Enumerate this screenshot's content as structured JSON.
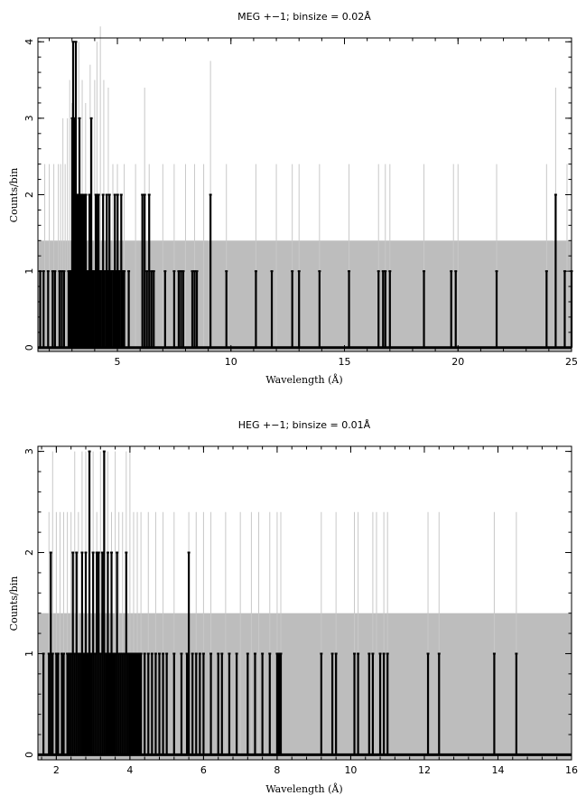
{
  "chart_data": [
    {
      "type": "line",
      "title": "MEG +−1; binsize = 0.02Å",
      "xlabel": "Wavelength (Å)",
      "ylabel": "Counts/bin",
      "xlim": [
        1.5,
        25
      ],
      "ylim": [
        -0.05,
        4.05
      ],
      "xticks": [
        5,
        10,
        15,
        20,
        25
      ],
      "yticks": [
        0,
        1,
        2,
        3,
        4
      ],
      "grid": false,
      "colors": {
        "data": "#000000",
        "model_band": "#bdbdbd",
        "model_lines": "#c8c8c8"
      },
      "model_band_level": 1.4,
      "model_line_peaks": [
        [
          1.8,
          2.4
        ],
        [
          2.0,
          2.4
        ],
        [
          2.2,
          2.4
        ],
        [
          2.4,
          2.4
        ],
        [
          2.5,
          2.4
        ],
        [
          2.6,
          3.0
        ],
        [
          2.7,
          2.4
        ],
        [
          2.8,
          3.0
        ],
        [
          2.9,
          3.5
        ],
        [
          3.0,
          3.2
        ],
        [
          3.05,
          4.0
        ],
        [
          3.15,
          3.7
        ],
        [
          3.3,
          4.0
        ],
        [
          3.45,
          3.5
        ],
        [
          3.6,
          3.2
        ],
        [
          3.8,
          3.7
        ],
        [
          4.0,
          3.5
        ],
        [
          4.1,
          4.0
        ],
        [
          4.25,
          4.2
        ],
        [
          4.4,
          3.5
        ],
        [
          4.6,
          3.4
        ],
        [
          4.8,
          2.4
        ],
        [
          5.0,
          2.4
        ],
        [
          5.3,
          2.4
        ],
        [
          5.8,
          2.4
        ],
        [
          6.2,
          3.4
        ],
        [
          6.4,
          2.4
        ],
        [
          7.0,
          2.4
        ],
        [
          7.5,
          2.4
        ],
        [
          8.0,
          2.4
        ],
        [
          8.4,
          2.4
        ],
        [
          8.8,
          2.4
        ],
        [
          9.1,
          3.75
        ],
        [
          9.8,
          2.4
        ],
        [
          11.1,
          2.4
        ],
        [
          12.0,
          2.4
        ],
        [
          12.7,
          2.4
        ],
        [
          13.0,
          2.4
        ],
        [
          13.9,
          2.4
        ],
        [
          15.2,
          2.4
        ],
        [
          16.5,
          2.4
        ],
        [
          16.8,
          2.4
        ],
        [
          17.0,
          2.4
        ],
        [
          18.5,
          2.4
        ],
        [
          19.8,
          2.4
        ],
        [
          20.0,
          2.4
        ],
        [
          21.7,
          2.4
        ],
        [
          23.9,
          2.4
        ],
        [
          24.3,
          3.4
        ],
        [
          24.8,
          2.4
        ]
      ],
      "series": [
        {
          "x": [
            1.6,
            1.65,
            1.75,
            1.85,
            1.95,
            2.05,
            2.15,
            2.25,
            2.35,
            2.45,
            2.55,
            2.65,
            2.75,
            2.85,
            2.93,
            2.97,
            3.01,
            3.05,
            3.09,
            3.13,
            3.17,
            3.21,
            3.25,
            3.29,
            3.33,
            3.37,
            3.41,
            3.45,
            3.49,
            3.53,
            3.57,
            3.61,
            3.65,
            3.69,
            3.73,
            3.77,
            3.81,
            3.85,
            3.89,
            3.93,
            3.97,
            4.01,
            4.05,
            4.09,
            4.13,
            4.17,
            4.21,
            4.25,
            4.29,
            4.33,
            4.37,
            4.41,
            4.45,
            4.49,
            4.53,
            4.57,
            4.61,
            4.65,
            4.69,
            4.73,
            4.77,
            4.81,
            4.85,
            4.89,
            4.93,
            4.97,
            5.01,
            5.05,
            5.09,
            5.13,
            5.17,
            5.21,
            5.25,
            5.3,
            5.5,
            6.1,
            6.2,
            6.3,
            6.4,
            6.5,
            6.6,
            7.1,
            7.5,
            7.7,
            7.8,
            7.9,
            8.3,
            8.4,
            8.5,
            9.1,
            9.8,
            11.1,
            11.8,
            12.7,
            13.0,
            13.9,
            15.2,
            16.5,
            16.7,
            16.8,
            17.0,
            18.5,
            19.7,
            19.9,
            21.7,
            23.9,
            24.3,
            24.7,
            25.0
          ],
          "y": [
            1,
            0,
            1,
            0,
            1,
            0,
            1,
            1,
            0,
            1,
            1,
            1,
            0,
            1,
            1,
            1,
            3,
            4,
            3,
            1,
            4,
            2,
            1,
            2,
            3,
            1,
            2,
            0,
            2,
            1,
            2,
            2,
            1,
            0,
            1,
            2,
            1,
            3,
            1,
            1,
            0,
            1,
            2,
            2,
            1,
            2,
            1,
            1,
            0,
            1,
            2,
            1,
            0,
            1,
            2,
            1,
            1,
            2,
            1,
            1,
            0,
            1,
            1,
            2,
            1,
            1,
            2,
            1,
            1,
            0,
            2,
            1,
            1,
            1,
            1,
            2,
            2,
            1,
            2,
            1,
            1,
            1,
            1,
            1,
            1,
            1,
            1,
            1,
            1,
            2,
            1,
            1,
            1,
            1,
            1,
            1,
            1,
            1,
            1,
            1,
            1,
            1,
            1,
            1,
            1,
            1,
            2,
            1,
            1
          ]
        }
      ]
    },
    {
      "type": "line",
      "title": "HEG +−1; binsize = 0.01Å",
      "xlabel": "Wavelength (Å)",
      "ylabel": "Counts/bin",
      "xlim": [
        1.5,
        16
      ],
      "ylim": [
        -0.05,
        3.05
      ],
      "xticks": [
        2,
        4,
        6,
        8,
        10,
        12,
        14,
        16
      ],
      "yticks": [
        0,
        1,
        2,
        3
      ],
      "grid": false,
      "colors": {
        "data": "#000000",
        "model_band": "#bdbdbd",
        "model_lines": "#c8c8c8"
      },
      "model_band_level": 1.4,
      "model_line_peaks": [
        [
          1.8,
          2.4
        ],
        [
          1.9,
          3.0
        ],
        [
          2.0,
          2.4
        ],
        [
          2.1,
          2.4
        ],
        [
          2.2,
          2.4
        ],
        [
          2.3,
          2.4
        ],
        [
          2.4,
          2.4
        ],
        [
          2.5,
          3.0
        ],
        [
          2.6,
          2.4
        ],
        [
          2.7,
          3.0
        ],
        [
          2.8,
          3.0
        ],
        [
          2.9,
          3.0
        ],
        [
          3.0,
          3.0
        ],
        [
          3.1,
          2.4
        ],
        [
          3.2,
          3.0
        ],
        [
          3.3,
          2.4
        ],
        [
          3.4,
          3.0
        ],
        [
          3.5,
          2.4
        ],
        [
          3.6,
          3.0
        ],
        [
          3.7,
          2.4
        ],
        [
          3.8,
          2.4
        ],
        [
          3.9,
          3.0
        ],
        [
          4.0,
          3.0
        ],
        [
          4.1,
          2.4
        ],
        [
          4.2,
          2.4
        ],
        [
          4.3,
          2.4
        ],
        [
          4.5,
          2.4
        ],
        [
          4.7,
          2.4
        ],
        [
          4.9,
          2.4
        ],
        [
          5.2,
          2.4
        ],
        [
          5.6,
          2.4
        ],
        [
          5.8,
          2.4
        ],
        [
          6.0,
          2.4
        ],
        [
          6.2,
          2.4
        ],
        [
          6.6,
          2.4
        ],
        [
          7.0,
          2.4
        ],
        [
          7.3,
          2.4
        ],
        [
          7.5,
          2.4
        ],
        [
          7.8,
          2.4
        ],
        [
          8.0,
          2.4
        ],
        [
          8.1,
          2.4
        ],
        [
          9.2,
          2.4
        ],
        [
          9.6,
          2.4
        ],
        [
          10.1,
          2.4
        ],
        [
          10.2,
          2.4
        ],
        [
          10.6,
          2.4
        ],
        [
          10.7,
          2.4
        ],
        [
          10.9,
          2.4
        ],
        [
          11.0,
          2.4
        ],
        [
          12.1,
          2.4
        ],
        [
          12.4,
          2.4
        ],
        [
          13.9,
          2.4
        ],
        [
          14.5,
          2.4
        ]
      ],
      "series": [
        {
          "x": [
            1.65,
            1.75,
            1.8,
            1.85,
            1.9,
            1.95,
            2.0,
            2.05,
            2.1,
            2.15,
            2.2,
            2.25,
            2.3,
            2.35,
            2.4,
            2.45,
            2.5,
            2.55,
            2.6,
            2.65,
            2.7,
            2.75,
            2.8,
            2.85,
            2.9,
            2.95,
            3.0,
            3.05,
            3.1,
            3.15,
            3.2,
            3.25,
            3.3,
            3.35,
            3.4,
            3.45,
            3.5,
            3.55,
            3.6,
            3.65,
            3.7,
            3.75,
            3.8,
            3.85,
            3.9,
            3.95,
            4.0,
            4.05,
            4.1,
            4.15,
            4.2,
            4.25,
            4.3,
            4.4,
            4.5,
            4.6,
            4.7,
            4.8,
            4.9,
            5.0,
            5.2,
            5.4,
            5.55,
            5.6,
            5.7,
            5.8,
            5.9,
            6.0,
            6.2,
            6.4,
            6.5,
            6.7,
            6.9,
            7.2,
            7.4,
            7.6,
            7.8,
            8.0,
            8.05,
            8.1,
            9.2,
            9.5,
            9.6,
            10.1,
            10.2,
            10.5,
            10.6,
            10.8,
            10.9,
            11.0,
            12.1,
            12.4,
            13.9,
            14.5
          ],
          "y": [
            1,
            0,
            1,
            2,
            1,
            0,
            1,
            1,
            0,
            1,
            1,
            0,
            1,
            1,
            1,
            2,
            1,
            2,
            1,
            1,
            2,
            1,
            2,
            1,
            3,
            1,
            2,
            1,
            2,
            2,
            1,
            2,
            3,
            1,
            2,
            1,
            2,
            1,
            1,
            2,
            1,
            1,
            1,
            1,
            2,
            1,
            1,
            1,
            1,
            1,
            1,
            1,
            1,
            1,
            1,
            1,
            1,
            1,
            1,
            1,
            1,
            1,
            1,
            2,
            1,
            1,
            1,
            1,
            1,
            1,
            1,
            1,
            1,
            1,
            1,
            1,
            1,
            1,
            1,
            1,
            1,
            1,
            1,
            1,
            1,
            1,
            1,
            1,
            1,
            1,
            1,
            1,
            1,
            1
          ]
        }
      ]
    }
  ]
}
